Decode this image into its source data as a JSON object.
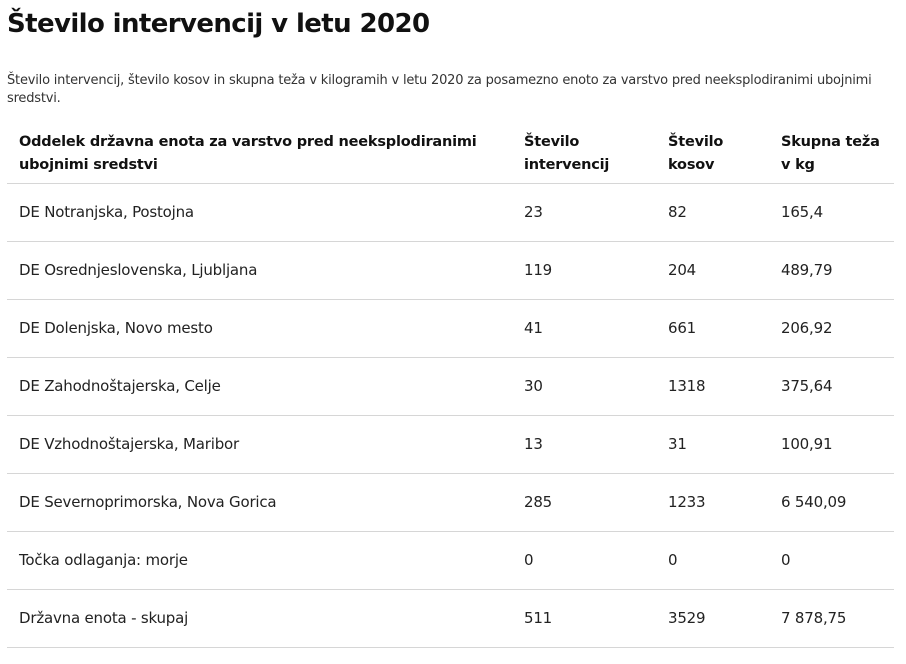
{
  "title": "Število intervencij v letu 2020",
  "caption": "Število intervencij, število kosov in skupna teža v kilogramih v letu 2020 za posamezno enoto za varstvo pred neeksplodiranimi ubojnimi sredstvi.",
  "table": {
    "headers": [
      "Oddelek državna enota za varstvo pred neeksplodiranimi ubojnimi sredstvi",
      "Število intervencij",
      "Število kosov",
      "Skupna teža v kg"
    ],
    "rows": [
      [
        "DE Notranjska, Postojna",
        "23",
        "82",
        "165,4"
      ],
      [
        "DE Osrednjeslovenska, Ljubljana",
        "119",
        "204",
        "489,79"
      ],
      [
        "DE Dolenjska, Novo mesto",
        "41",
        "661",
        "206,92"
      ],
      [
        "DE Zahodnoštajerska, Celje",
        "30",
        "1318",
        "375,64"
      ],
      [
        "DE Vzhodnoštajerska, Maribor",
        "13",
        "31",
        "100,91"
      ],
      [
        "DE Severnoprimorska, Nova Gorica",
        "285",
        "1233",
        "6 540,09"
      ],
      [
        "Točka odlaganja: morje",
        "0",
        "0",
        "0"
      ],
      [
        "Državna enota - skupaj",
        "511",
        "3529",
        "7 878,75"
      ]
    ]
  }
}
